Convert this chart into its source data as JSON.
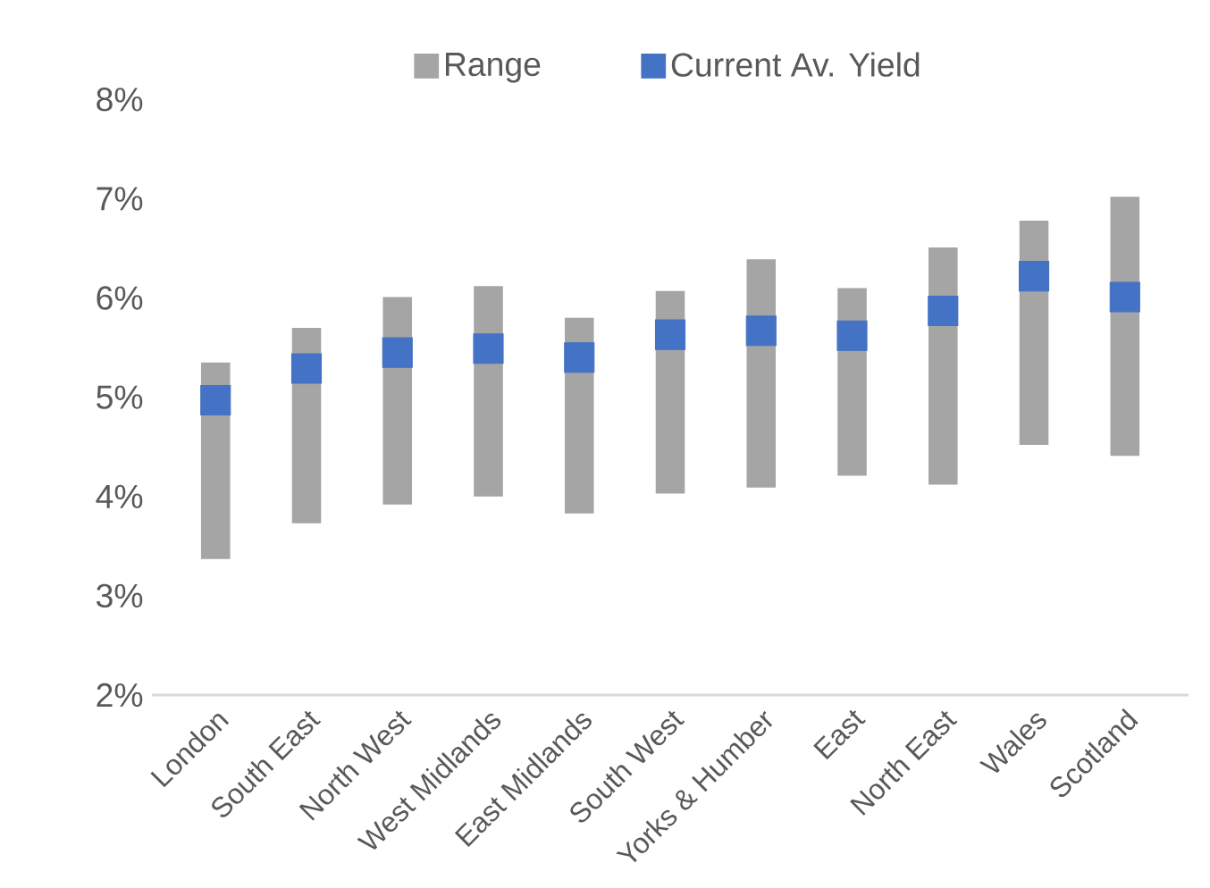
{
  "chart_data": {
    "type": "bar",
    "categories": [
      "London",
      "South East",
      "North West",
      "West Midlands",
      "East Midlands",
      "South West",
      "Yorks & Humber",
      "East",
      "North East",
      "Wales",
      "Scotland"
    ],
    "series": [
      {
        "name": "Range",
        "color": "#a5a5a5",
        "base": [
          3.37,
          3.73,
          3.92,
          4.0,
          3.83,
          4.03,
          4.09,
          4.21,
          4.12,
          4.52,
          4.41
        ],
        "values": [
          1.98,
          1.97,
          2.09,
          2.12,
          1.97,
          2.04,
          2.3,
          1.89,
          2.39,
          2.26,
          2.61
        ]
      },
      {
        "name": "Current Av. Yield",
        "type": "scatter",
        "color": "#4472c4",
        "marker": "square",
        "values": [
          4.97,
          5.29,
          5.45,
          5.49,
          5.4,
          5.63,
          5.67,
          5.62,
          5.87,
          6.22,
          6.01
        ]
      }
    ],
    "ylim": [
      2,
      8
    ],
    "yticks": [
      {
        "value": 2,
        "label": "2%"
      },
      {
        "value": 3,
        "label": "3%"
      },
      {
        "value": 4,
        "label": "4%"
      },
      {
        "value": 5,
        "label": "5%"
      },
      {
        "value": 6,
        "label": "6%"
      },
      {
        "value": 7,
        "label": "7%"
      },
      {
        "value": 8,
        "label": "8%"
      }
    ],
    "grid": false,
    "legend": "top"
  }
}
